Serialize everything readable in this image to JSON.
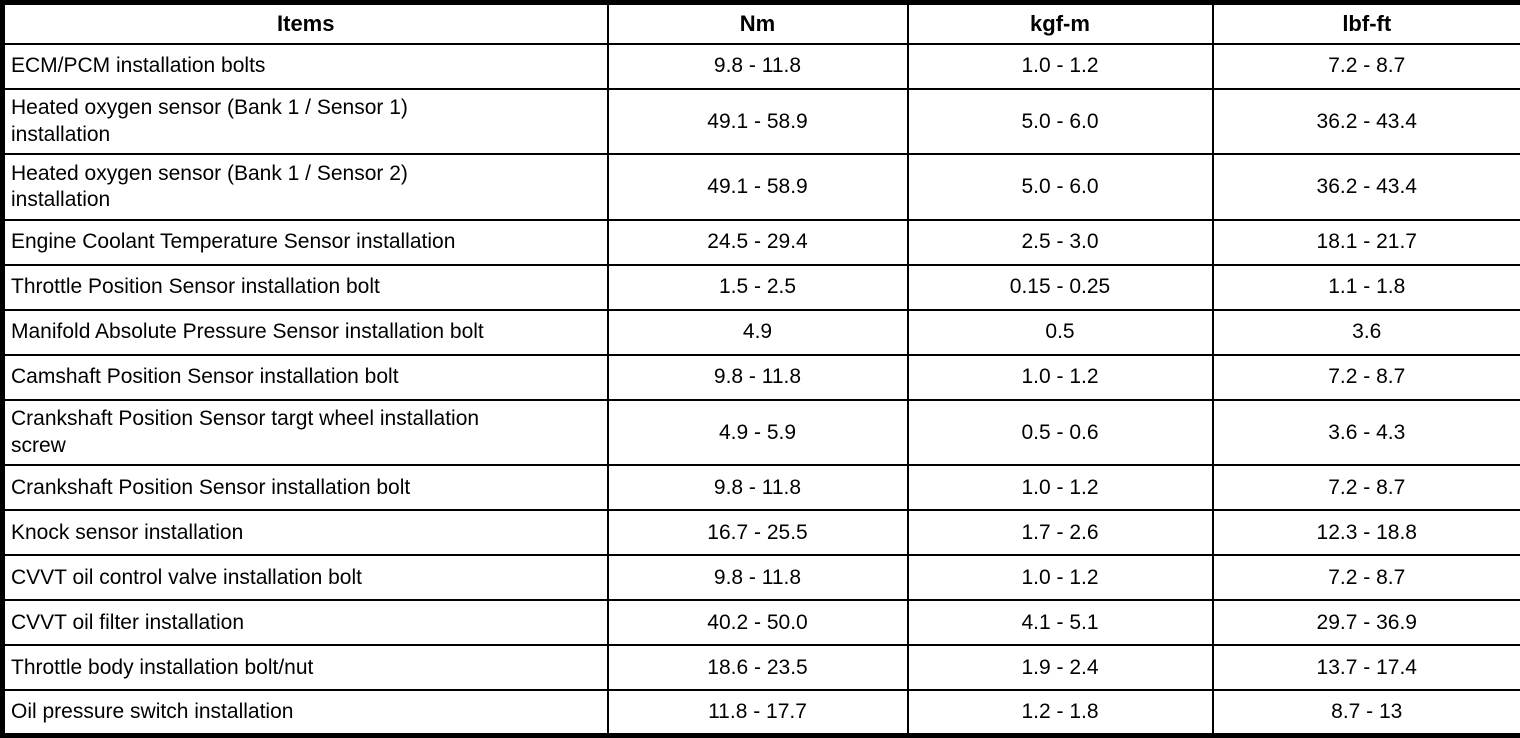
{
  "colors": {
    "border": "#000000",
    "background": "#ffffff",
    "text": "#000000"
  },
  "table": {
    "columns": [
      "Items",
      "Nm",
      "kgf-m",
      "lbf-ft"
    ],
    "rows": [
      [
        "ECM/PCM installation bolts",
        "9.8 - 11.8",
        "1.0 - 1.2",
        "7.2 - 8.7"
      ],
      [
        "Heated oxygen sensor (Bank 1 / Sensor 1)\ninstallation",
        "49.1 - 58.9",
        "5.0 - 6.0",
        "36.2 - 43.4"
      ],
      [
        "Heated oxygen sensor (Bank 1 / Sensor 2)\ninstallation",
        "49.1 - 58.9",
        "5.0 - 6.0",
        "36.2 - 43.4"
      ],
      [
        "Engine Coolant Temperature Sensor installation",
        "24.5 - 29.4",
        "2.5 - 3.0",
        "18.1 - 21.7"
      ],
      [
        "Throttle Position Sensor installation bolt",
        "1.5 - 2.5",
        "0.15 - 0.25",
        "1.1 - 1.8"
      ],
      [
        "Manifold Absolute Pressure Sensor installation bolt",
        "4.9",
        "0.5",
        "3.6"
      ],
      [
        "Camshaft Position Sensor installation bolt",
        "9.8 - 11.8",
        "1.0 - 1.2",
        "7.2 - 8.7"
      ],
      [
        "Crankshaft Position Sensor targt wheel installation\nscrew",
        "4.9 - 5.9",
        "0.5 - 0.6",
        "3.6 - 4.3"
      ],
      [
        "Crankshaft Position Sensor installation bolt",
        "9.8 - 11.8",
        "1.0 - 1.2",
        "7.2 - 8.7"
      ],
      [
        "Knock sensor installation",
        "16.7 - 25.5",
        "1.7 - 2.6",
        "12.3 - 18.8"
      ],
      [
        "CVVT oil control valve installation bolt",
        "9.8 - 11.8",
        "1.0 - 1.2",
        "7.2 - 8.7"
      ],
      [
        "CVVT oil filter installation",
        "40.2 - 50.0",
        "4.1 - 5.1",
        "29.7 - 36.9"
      ],
      [
        "Throttle body installation bolt/nut",
        "18.6 - 23.5",
        "1.9 - 2.4",
        "13.7 - 17.4"
      ],
      [
        "Oil pressure switch installation",
        "11.8 - 17.7",
        "1.2 - 1.8",
        "8.7 - 13"
      ]
    ]
  }
}
